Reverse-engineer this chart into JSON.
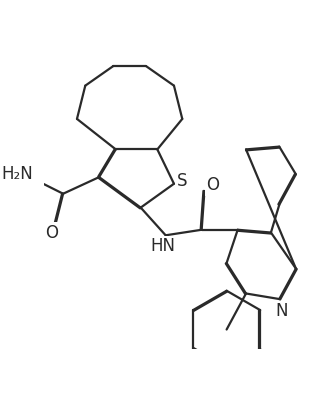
{
  "bg_color": "#ffffff",
  "line_color": "#2a2a2a",
  "line_width": 1.6,
  "dbo": 0.018,
  "figsize": [
    3.25,
    3.93
  ],
  "dpi": 100,
  "xlim": [
    -0.5,
    4.5
  ],
  "ylim": [
    -1.5,
    4.0
  ]
}
